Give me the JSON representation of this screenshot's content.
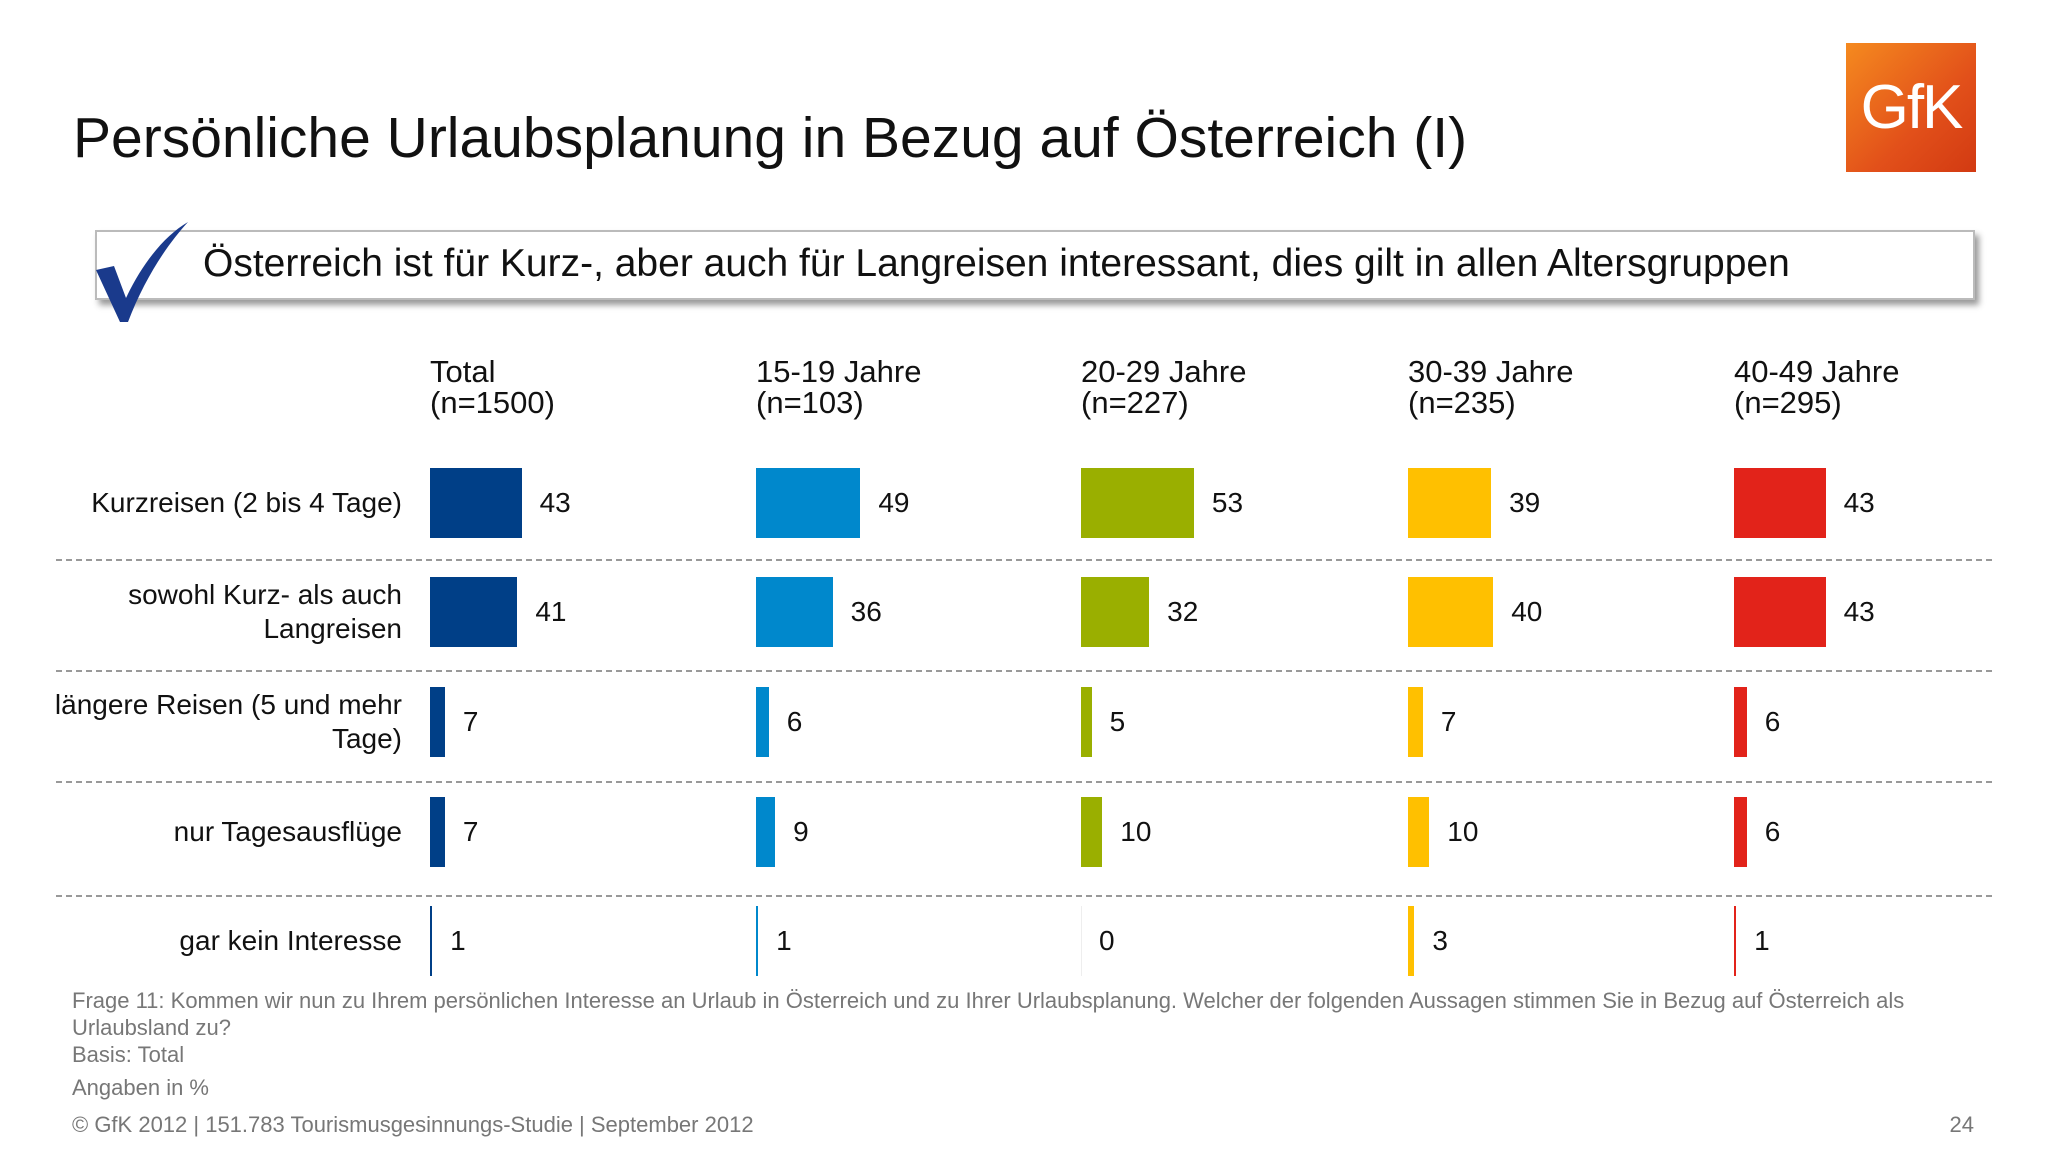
{
  "header": {
    "title": "Persönliche Urlaubsplanung in Bezug auf Österreich (I)",
    "logo": "GfK"
  },
  "key_message": "Österreich ist für Kurz-, aber auch für Langreisen interessant, dies gilt in allen Altersgruppen",
  "chart_data": {
    "type": "bar",
    "orientation": "horizontal",
    "categories": [
      "Kurzreisen (2 bis 4 Tage)",
      "sowohl Kurz- als auch Langreisen",
      "längere Reisen (5 und mehr Tage)",
      "nur Tagesausflüge",
      "gar kein Interesse"
    ],
    "xlim": [
      0,
      100
    ],
    "series": [
      {
        "name": "Total",
        "sample": "(n=1500)",
        "color": "#003f87",
        "values": [
          43,
          41,
          7,
          7,
          1
        ]
      },
      {
        "name": "15-19 Jahre",
        "sample": "(n=103)",
        "color": "#0088cc",
        "values": [
          49,
          36,
          6,
          9,
          1
        ]
      },
      {
        "name": "20-29 Jahre",
        "sample": "(n=227)",
        "color": "#9aaf00",
        "values": [
          53,
          32,
          5,
          10,
          0
        ]
      },
      {
        "name": "30-39 Jahre",
        "sample": "(n=235)",
        "color": "#ffc000",
        "values": [
          39,
          40,
          7,
          10,
          3
        ]
      },
      {
        "name": "40-49 Jahre",
        "sample": "(n=295)",
        "color": "#e2231a",
        "values": [
          43,
          43,
          6,
          6,
          1
        ]
      }
    ]
  },
  "notes": {
    "question": "Frage 11: Kommen wir nun zu Ihrem persönlichen Interesse an Urlaub in Österreich und zu Ihrer Urlaubsplanung. Welcher der folgenden Aussagen stimmen Sie in Bezug auf Österreich als Urlaubsland zu?",
    "basis": "Basis: Total",
    "unit": "Angaben in %"
  },
  "footer": {
    "source": "© GfK 2012 | 151.783 Tourismusgesinnungs-Studie | September 2012",
    "page": "24"
  }
}
